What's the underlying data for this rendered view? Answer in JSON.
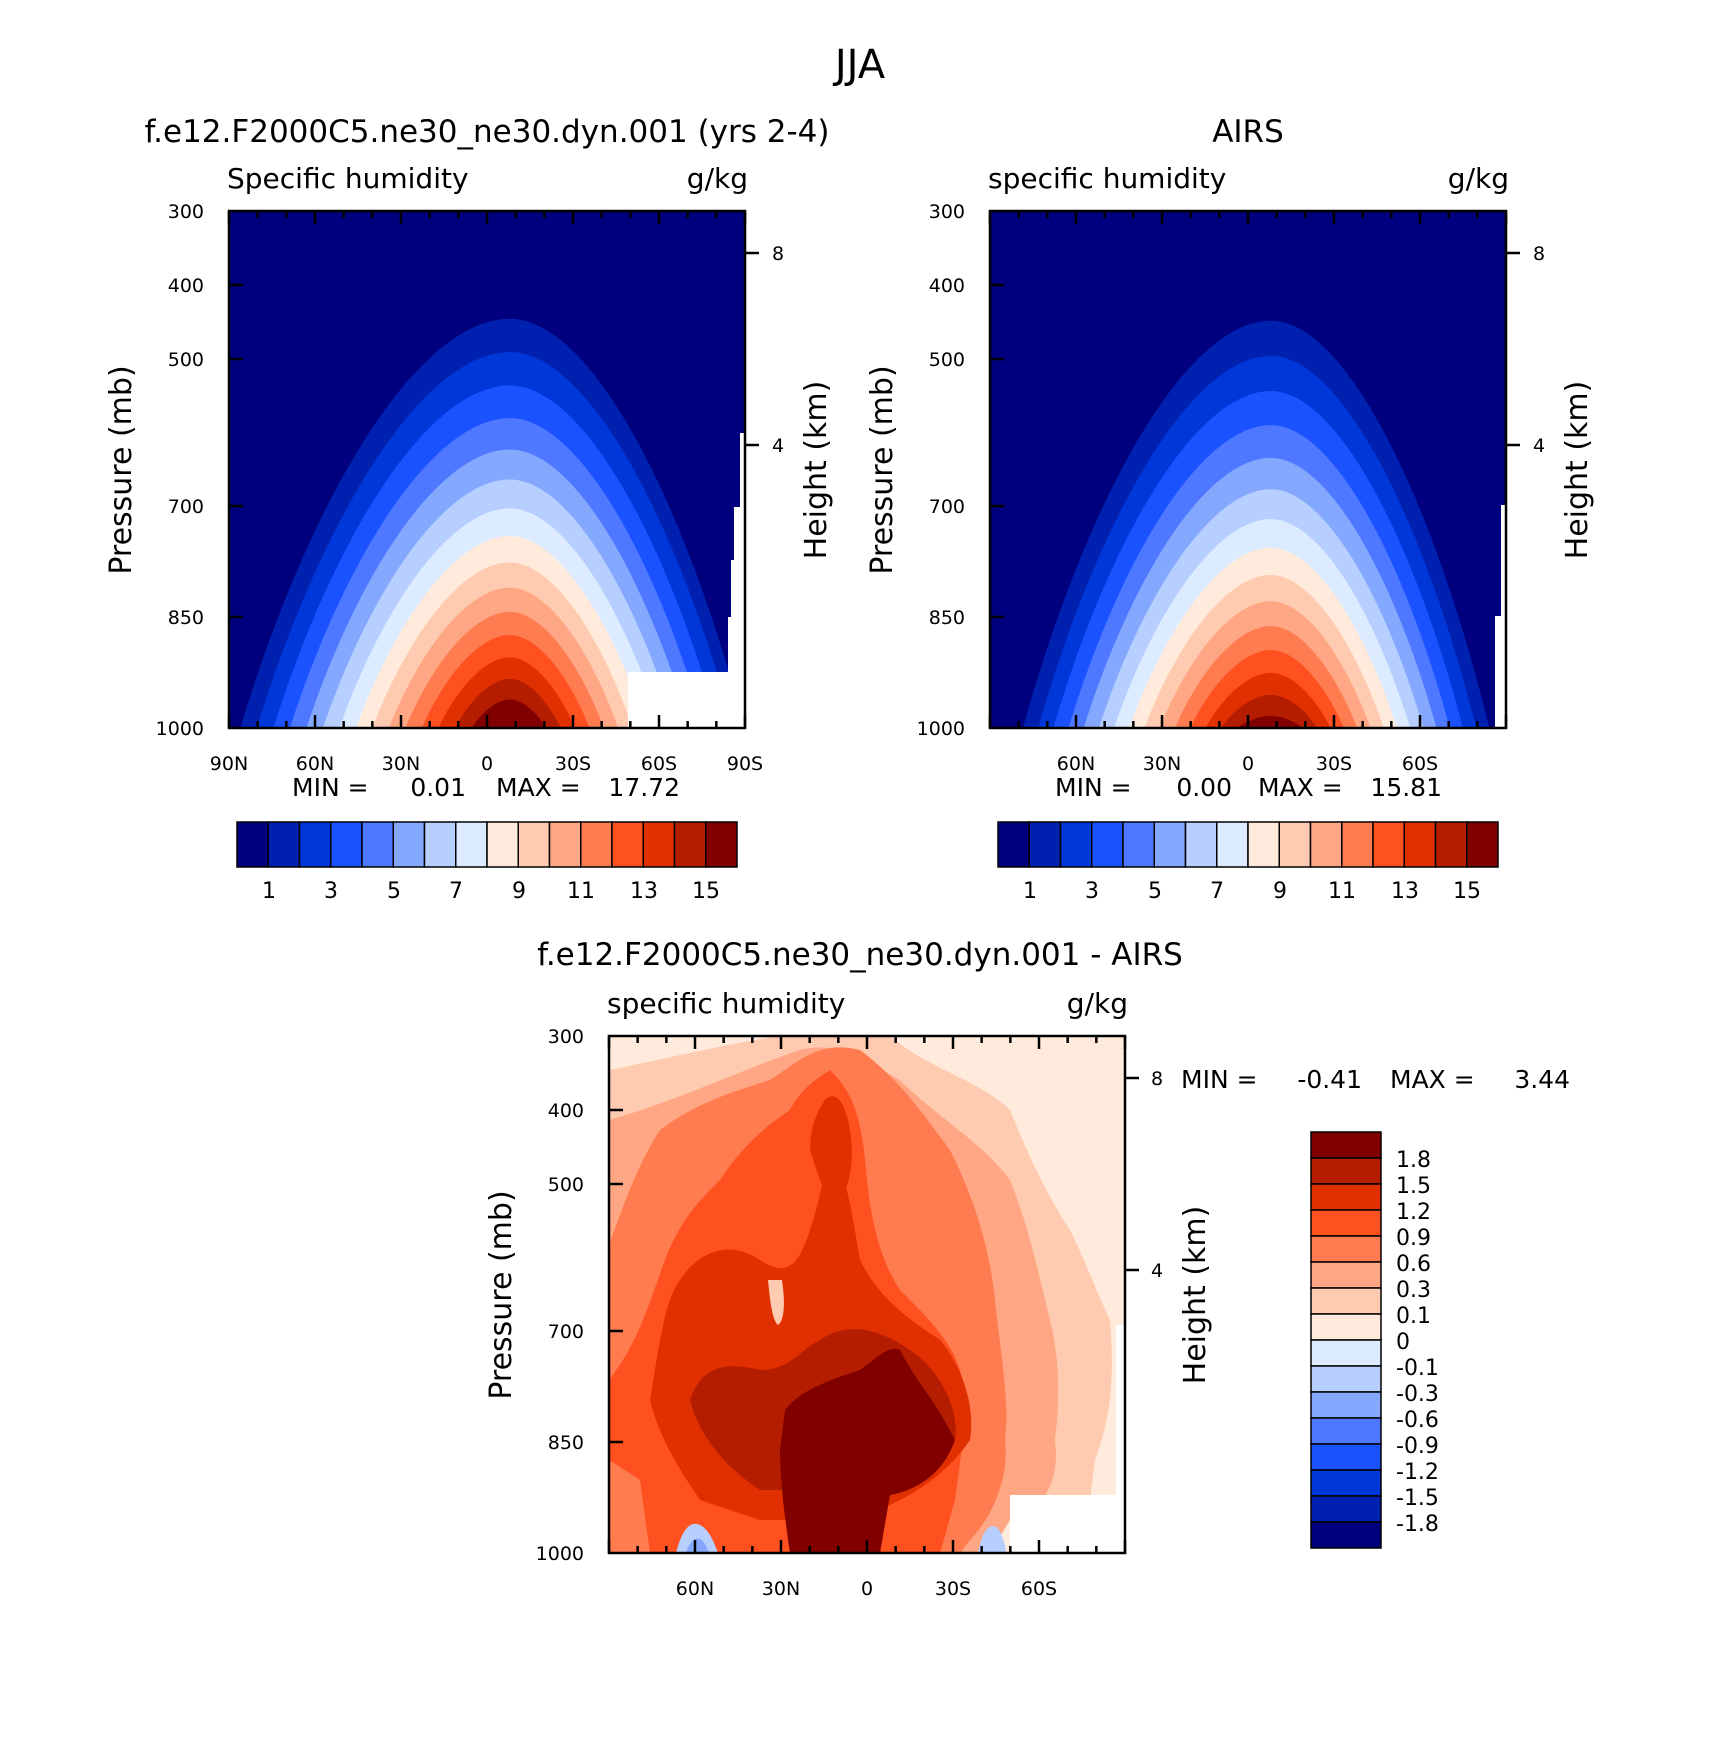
{
  "figure": {
    "title": "JJA"
  },
  "chart_data": [
    {
      "type": "contour",
      "title": "f.e12.F2000C5.ne30_ne30.dyn.001 (yrs 2-4)",
      "left_string": "Specific humidity",
      "right_string": "g/kg",
      "ylabel": "Pressure (mb)",
      "y2label": "Height (km)",
      "x_ticks": [
        "90N",
        "60N",
        "30N",
        "0",
        "30S",
        "60S",
        "90S"
      ],
      "x_range": [
        90,
        -90
      ],
      "y_ticks": [
        "300",
        "400",
        "500",
        "700",
        "850",
        "1000"
      ],
      "y_range": [
        300,
        1000
      ],
      "y2_ticks": [
        "8",
        "4"
      ],
      "min_label": "MIN =",
      "min_value": "0.01",
      "max_label": "MAX =",
      "max_value": "17.72",
      "peak_lat": -8,
      "peak_pressure": 985,
      "colorbar_labels": [
        "1",
        "3",
        "5",
        "7",
        "9",
        "11",
        "13",
        "15"
      ],
      "levels": [
        0,
        1,
        2,
        3,
        4,
        5,
        6,
        7,
        8,
        9,
        10,
        11,
        12,
        13,
        14,
        15,
        16
      ]
    },
    {
      "type": "contour",
      "title": "AIRS",
      "left_string": "specific humidity",
      "right_string": "g/kg",
      "ylabel": "Pressure (mb)",
      "y2label": "Height (km)",
      "x_ticks": [
        "60N",
        "30N",
        "0",
        "30S",
        "60S"
      ],
      "x_range": [
        90,
        -90
      ],
      "y_ticks": [
        "300",
        "400",
        "500",
        "700",
        "850",
        "1000"
      ],
      "y_range": [
        300,
        1000
      ],
      "y2_ticks": [
        "8",
        "4"
      ],
      "min_label": "MIN =",
      "min_value": "0.00",
      "max_label": "MAX =",
      "max_value": "15.81",
      "peak_lat": -8,
      "peak_pressure": 985,
      "colorbar_labels": [
        "1",
        "3",
        "5",
        "7",
        "9",
        "11",
        "13",
        "15"
      ],
      "levels": [
        0,
        1,
        2,
        3,
        4,
        5,
        6,
        7,
        8,
        9,
        10,
        11,
        12,
        13,
        14,
        15,
        16
      ]
    },
    {
      "type": "contour",
      "title": "f.e12.F2000C5.ne30_ne30.dyn.001 - AIRS",
      "left_string": "specific humidity",
      "right_string": "g/kg",
      "ylabel": "Pressure (mb)",
      "y2label": "Height (km)",
      "x_ticks": [
        "60N",
        "30N",
        "0",
        "30S",
        "60S"
      ],
      "x_range": [
        90,
        -90
      ],
      "y_ticks": [
        "300",
        "400",
        "500",
        "700",
        "850",
        "1000"
      ],
      "y_range": [
        300,
        1000
      ],
      "y2_ticks": [
        "8",
        "4"
      ],
      "min_label": "MIN =",
      "min_value": "-0.41",
      "max_label": "MAX =",
      "max_value": "3.44",
      "colorbar_labels": [
        "1.8",
        "1.5",
        "1.2",
        "0.9",
        "0.6",
        "0.3",
        "0.1",
        "0",
        "-0.1",
        "-0.3",
        "-0.6",
        "-0.9",
        "-1.2",
        "-1.5",
        "-1.8"
      ],
      "levels": [
        -1.8,
        -1.5,
        -1.2,
        -0.9,
        -0.6,
        -0.3,
        -0.1,
        0,
        0.1,
        0.3,
        0.6,
        0.9,
        1.2,
        1.5,
        1.8
      ]
    }
  ],
  "colors": {
    "blue_red_16": [
      "#00007f",
      "#0020b0",
      "#0037d8",
      "#1a52ff",
      "#4d78ff",
      "#85a8ff",
      "#b7cfff",
      "#dcebff",
      "#ffeadb",
      "#ffcbb0",
      "#ffa784",
      "#ff7c50",
      "#ff5020",
      "#e03000",
      "#b51d00",
      "#800000"
    ]
  }
}
